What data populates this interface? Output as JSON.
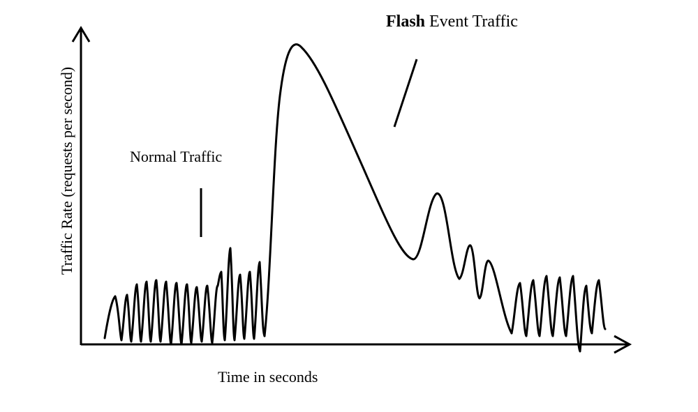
{
  "labels": {
    "flash_bold": "Flash",
    "flash_rest": " Event Traffic",
    "normal": "Normal Traffic",
    "x_axis": "Time in seconds",
    "y_axis": "Traffic Rate (requests per second)"
  },
  "colors": {
    "ink": "#000000",
    "background": "#ffffff"
  }
}
